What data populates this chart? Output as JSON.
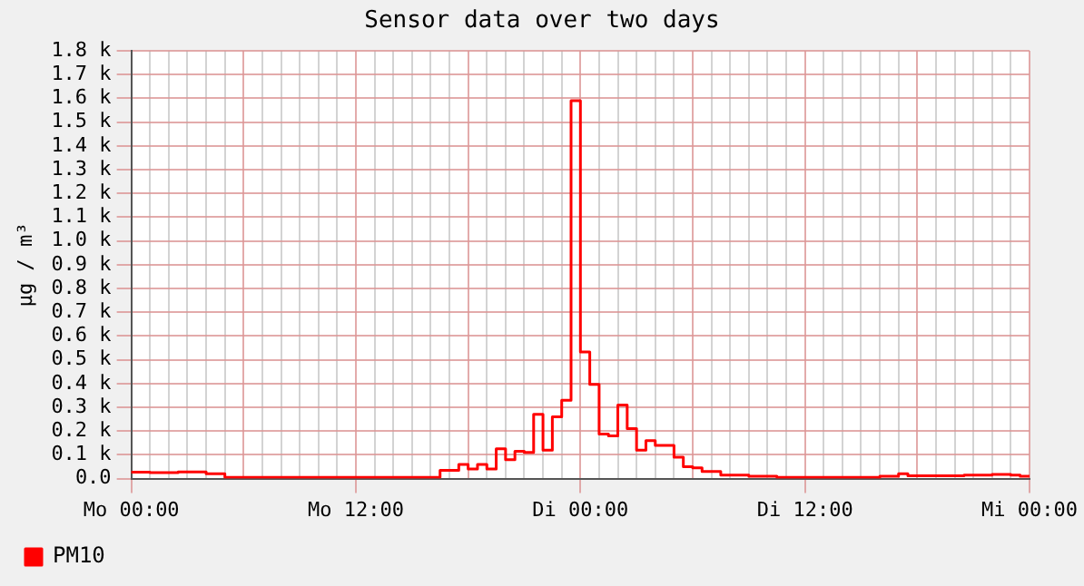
{
  "chart_data": {
    "type": "step",
    "title": "Sensor data over two days",
    "ylabel": "µg / m³",
    "categories": [
      "Mo 00:00",
      null,
      null,
      null,
      null,
      null,
      null,
      null,
      null,
      null,
      null,
      null,
      null,
      null,
      null,
      null,
      null,
      null,
      null,
      null,
      null,
      null,
      null,
      null,
      "Mo 12:00",
      null,
      null,
      null,
      null,
      null,
      null,
      null,
      null,
      null,
      null,
      null,
      null,
      null,
      null,
      null,
      null,
      null,
      null,
      null,
      null,
      null,
      null,
      null,
      "Di 00:00",
      null,
      null,
      null,
      null,
      null,
      null,
      null,
      null,
      null,
      null,
      null,
      null,
      null,
      null,
      null,
      null,
      null,
      null,
      null,
      null,
      null,
      null,
      null,
      "Di 12:00",
      null,
      null,
      null,
      null,
      null,
      null,
      null,
      null,
      null,
      null,
      null,
      null,
      null,
      null,
      null,
      null,
      null,
      null,
      null,
      null,
      null,
      null,
      null,
      "Mi 00:00"
    ],
    "series": [
      {
        "name": "PM10",
        "color": "#ff0000",
        "values": [
          27,
          27,
          25,
          25,
          25,
          28,
          28,
          28,
          20,
          20,
          5,
          5,
          5,
          5,
          5,
          5,
          5,
          5,
          5,
          5,
          5,
          5,
          5,
          5,
          5,
          5,
          5,
          5,
          5,
          5,
          5,
          5,
          5,
          35,
          35,
          60,
          40,
          60,
          40,
          125,
          80,
          115,
          110,
          270,
          120,
          260,
          330,
          1590,
          533,
          396,
          187,
          180,
          310,
          210,
          120,
          160,
          140,
          140,
          90,
          50,
          45,
          30,
          30,
          15,
          15,
          15,
          10,
          10,
          10,
          5,
          5,
          5,
          5,
          5,
          5,
          5,
          5,
          5,
          5,
          5,
          10,
          10,
          20,
          12,
          12,
          12,
          12,
          12,
          12,
          15,
          15,
          15,
          18,
          18,
          15,
          10,
          10
        ]
      }
    ],
    "ylim": [
      0,
      1800
    ],
    "yticks": [
      {
        "value": 0,
        "label": "0.0"
      },
      {
        "value": 100,
        "label": "0.1 k"
      },
      {
        "value": 200,
        "label": "0.2 k"
      },
      {
        "value": 300,
        "label": "0.3 k"
      },
      {
        "value": 400,
        "label": "0.4 k"
      },
      {
        "value": 500,
        "label": "0.5 k"
      },
      {
        "value": 600,
        "label": "0.6 k"
      },
      {
        "value": 700,
        "label": "0.7 k"
      },
      {
        "value": 800,
        "label": "0.8 k"
      },
      {
        "value": 900,
        "label": "0.9 k"
      },
      {
        "value": 1000,
        "label": "1.0 k"
      },
      {
        "value": 1100,
        "label": "1.1 k"
      },
      {
        "value": 1200,
        "label": "1.2 k"
      },
      {
        "value": 1300,
        "label": "1.3 k"
      },
      {
        "value": 1400,
        "label": "1.4 k"
      },
      {
        "value": 1500,
        "label": "1.5 k"
      },
      {
        "value": 1600,
        "label": "1.6 k"
      },
      {
        "value": 1700,
        "label": "1.7 k"
      },
      {
        "value": 1800,
        "label": "1.8 k"
      }
    ],
    "grid": true,
    "legend": "bottom left"
  }
}
